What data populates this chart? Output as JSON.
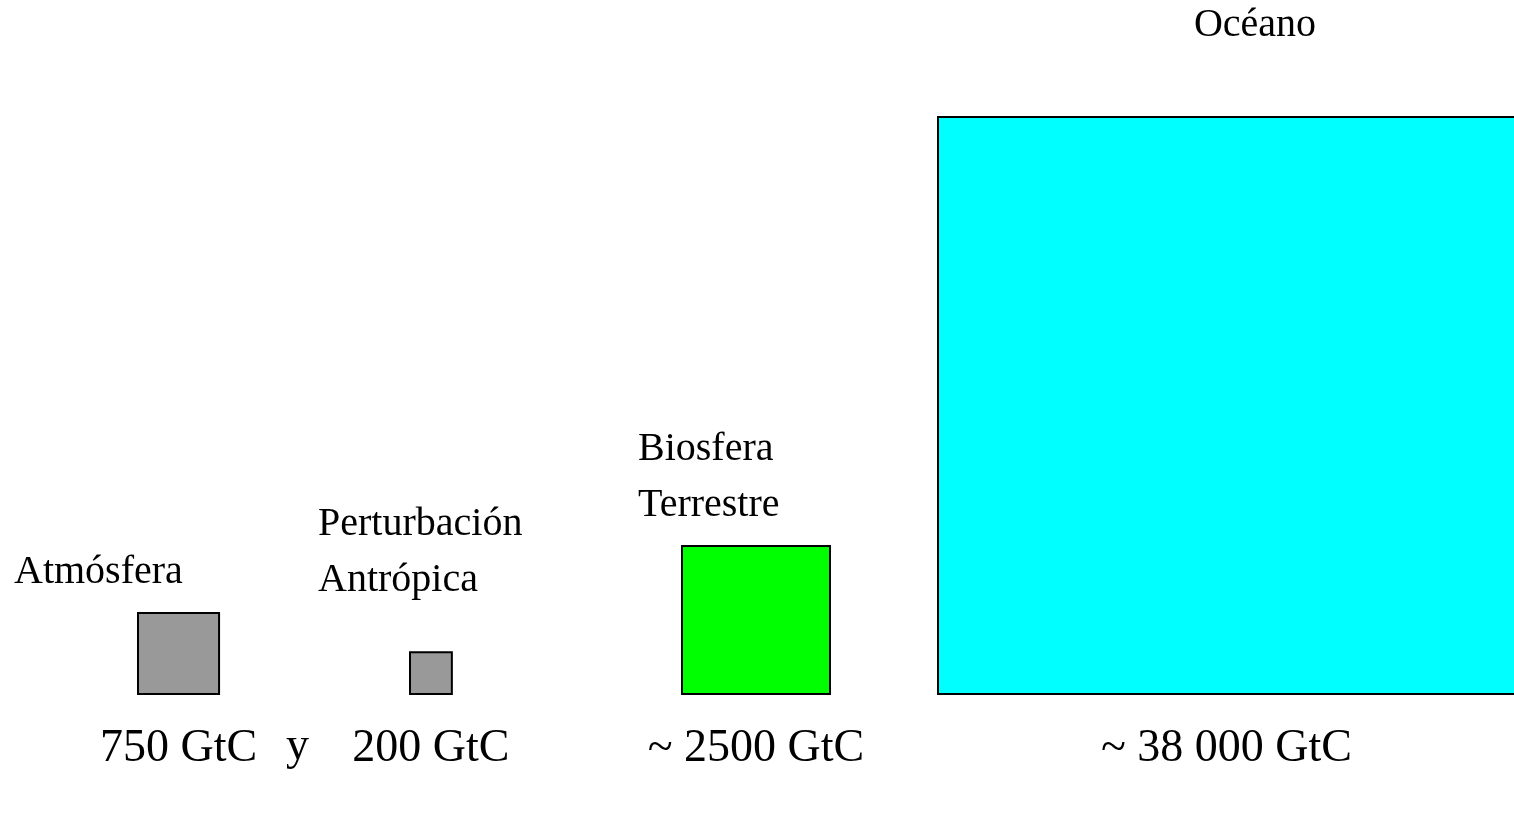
{
  "chart_data": {
    "type": "other",
    "categories": [
      "Atmósfera",
      "Perturbación\nAntrópica",
      "Biosfera\nTerrestre",
      "Océano"
    ],
    "values": [
      750,
      200,
      2500,
      38000
    ],
    "colors": [
      "#999999",
      "#999999",
      "#00ff00",
      "#00ffff"
    ],
    "value_labels": [
      "750 GtC",
      "200 GtC",
      "~ 2500 GtC",
      "~ 38 000 GtC"
    ],
    "annotations": [
      "y"
    ]
  }
}
